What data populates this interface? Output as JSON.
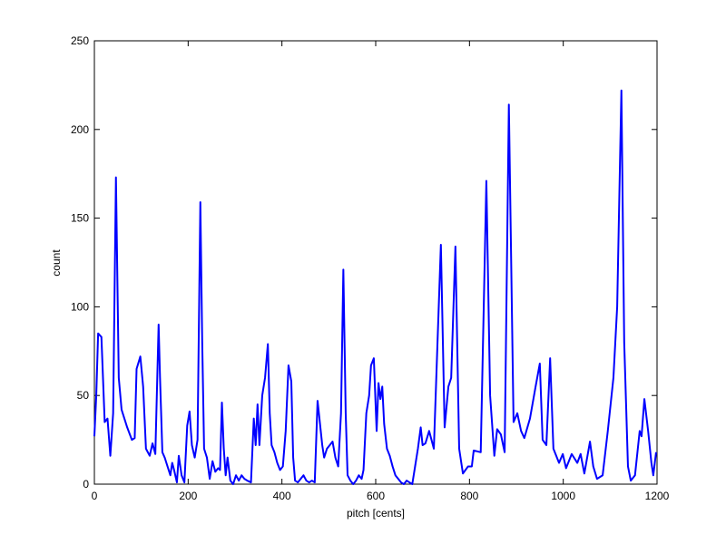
{
  "chart_data": {
    "type": "line",
    "xlabel": "pitch [cents]",
    "ylabel": "count",
    "x": [
      0,
      4,
      8,
      15,
      22,
      28,
      34,
      40,
      46,
      52,
      58,
      70,
      80,
      86,
      90,
      98,
      104,
      110,
      118,
      124,
      130,
      137,
      140,
      145,
      150,
      156,
      162,
      166,
      170,
      176,
      180,
      186,
      192,
      198,
      203,
      208,
      214,
      220,
      226,
      230,
      234,
      240,
      246,
      252,
      258,
      264,
      268,
      272,
      276,
      280,
      284,
      290,
      296,
      302,
      308,
      314,
      320,
      326,
      334,
      340,
      344,
      348,
      352,
      358,
      364,
      370,
      374,
      378,
      384,
      390,
      396,
      402,
      408,
      414,
      420,
      424,
      428,
      434,
      440,
      446,
      452,
      458,
      464,
      470,
      476,
      480,
      486,
      490,
      496,
      502,
      508,
      514,
      520,
      526,
      531,
      536,
      540,
      546,
      552,
      558,
      564,
      570,
      574,
      580,
      586,
      590,
      596,
      602,
      606,
      610,
      614,
      618,
      624,
      630,
      636,
      642,
      648,
      654,
      660,
      666,
      672,
      678,
      684,
      690,
      696,
      700,
      706,
      714,
      724,
      739,
      747,
      755,
      761,
      770,
      778,
      786,
      797,
      805,
      809,
      824,
      836,
      844,
      853,
      859,
      867,
      875,
      884,
      894,
      902,
      910,
      917,
      929,
      941,
      950,
      956,
      964,
      972,
      979,
      991,
      999,
      1006,
      1018,
      1030,
      1037,
      1045,
      1057,
      1064,
      1072,
      1084,
      1095,
      1107,
      1115,
      1124,
      1130,
      1138,
      1144,
      1153,
      1163,
      1167,
      1173,
      1181,
      1188,
      1192,
      1198
    ],
    "series": [
      {
        "name": "count",
        "color": "#0000ff",
        "values": [
          27,
          50,
          85,
          83,
          35,
          37,
          16,
          40,
          173,
          60,
          42,
          32,
          25,
          26,
          65,
          72,
          55,
          20,
          16,
          23,
          17,
          90,
          60,
          18,
          15,
          10,
          5,
          12,
          8,
          1,
          16,
          5,
          1,
          33,
          41,
          22,
          15,
          25,
          159,
          80,
          20,
          15,
          3,
          13,
          7,
          9,
          8,
          46,
          20,
          5,
          15,
          2,
          0,
          5,
          2,
          5,
          3,
          2,
          1,
          37,
          22,
          45,
          22,
          50,
          60,
          79,
          40,
          22,
          18,
          12,
          8,
          10,
          30,
          67,
          58,
          15,
          2,
          1,
          3,
          5,
          2,
          1,
          2,
          1,
          47,
          37,
          22,
          15,
          20,
          22,
          24,
          15,
          10,
          40,
          121,
          40,
          5,
          2,
          0,
          2,
          5,
          3,
          8,
          40,
          50,
          67,
          71,
          30,
          57,
          48,
          55,
          34,
          20,
          16,
          10,
          5,
          3,
          1,
          0,
          2,
          1,
          0,
          10,
          20,
          32,
          22,
          23,
          30,
          20,
          135,
          32,
          55,
          60,
          134,
          20,
          6,
          10,
          10,
          19,
          18,
          171,
          50,
          16,
          31,
          28,
          18,
          214,
          35,
          40,
          30,
          26,
          37,
          55,
          68,
          25,
          22,
          71,
          20,
          12,
          17,
          9,
          17,
          12,
          17,
          6,
          24,
          10,
          3,
          5,
          30,
          60,
          100,
          222,
          80,
          10,
          2,
          5,
          30,
          27,
          48,
          30,
          12,
          5,
          18
        ]
      }
    ],
    "xlim": [
      0,
      1200
    ],
    "xticks": [
      0,
      200,
      400,
      600,
      800,
      1000,
      1200
    ],
    "ylim": [
      0,
      250
    ],
    "yticks": [
      0,
      50,
      100,
      150,
      200,
      250
    ]
  }
}
